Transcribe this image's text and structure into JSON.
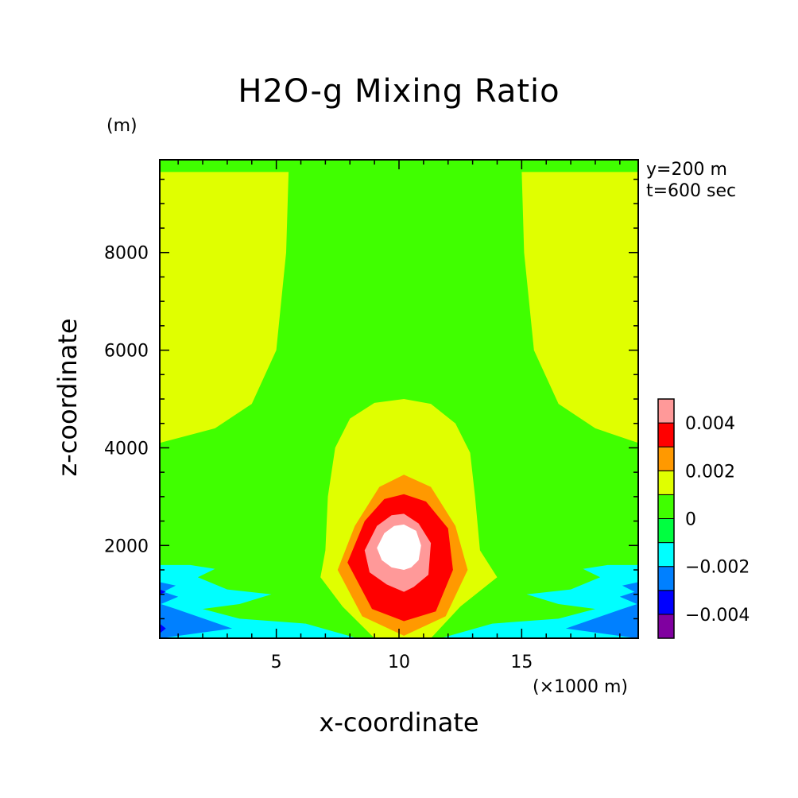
{
  "title": "H2O-g Mixing Ratio",
  "annotations": [
    "y=200 m",
    "t=600 sec"
  ],
  "chart_data": {
    "type": "heatmap",
    "title": "H2O-g Mixing Ratio",
    "xlabel": "x-coordinate",
    "ylabel": "z-coordinate",
    "x_unit_label": "(×1000 m)",
    "y_unit_label": "(m)",
    "xlim": [
      0.25,
      19.75
    ],
    "ylim": [
      100,
      9900
    ],
    "x_ticks": [
      5,
      10,
      15
    ],
    "y_ticks": [
      2000,
      4000,
      6000,
      8000
    ],
    "x_tick_labels": [
      "5",
      "10",
      "15"
    ],
    "y_tick_labels": [
      "2000",
      "4000",
      "6000",
      "8000"
    ],
    "colorbar": {
      "levels": [
        -0.005,
        -0.004,
        -0.003,
        -0.002,
        -0.001,
        0,
        0.001,
        0.002,
        0.003,
        0.004,
        0.005
      ],
      "colors": [
        "#8000a0",
        "#0000ff",
        "#0080ff",
        "#00ffff",
        "#00ff40",
        "#40ff00",
        "#e0ff00",
        "#ff9900",
        "#ff0000",
        "#ff9999"
      ],
      "tick_values": [
        -0.004,
        -0.002,
        0,
        0.002,
        0.004
      ],
      "tick_labels": [
        "−0.004",
        "−0.002",
        "0",
        "0.002",
        "0.004"
      ]
    },
    "background_bin": "0 to 0.001",
    "regions": [
      {
        "name": "upper-left-positive",
        "bin": "0.001 to 0.002",
        "points": [
          [
            0.25,
            9650
          ],
          [
            5.5,
            9650
          ],
          [
            5.4,
            8000
          ],
          [
            5.0,
            6000
          ],
          [
            4.0,
            4900
          ],
          [
            2.5,
            4400
          ],
          [
            1.0,
            4200
          ],
          [
            0.25,
            4100
          ]
        ]
      },
      {
        "name": "upper-right-positive",
        "bin": "0.001 to 0.002",
        "points": [
          [
            19.75,
            9650
          ],
          [
            15.0,
            9650
          ],
          [
            15.1,
            8000
          ],
          [
            15.5,
            6000
          ],
          [
            16.5,
            4900
          ],
          [
            18.0,
            4400
          ],
          [
            19.75,
            4100
          ]
        ]
      },
      {
        "name": "central-plume",
        "bin": "0.001 to 0.002",
        "points": [
          [
            6.8,
            1350
          ],
          [
            7.0,
            1900
          ],
          [
            7.1,
            3000
          ],
          [
            7.4,
            4000
          ],
          [
            8.0,
            4600
          ],
          [
            9.0,
            4920
          ],
          [
            10.2,
            5000
          ],
          [
            11.3,
            4900
          ],
          [
            12.3,
            4500
          ],
          [
            12.9,
            3900
          ],
          [
            13.1,
            3000
          ],
          [
            13.3,
            1900
          ],
          [
            14.0,
            1350
          ],
          [
            12.5,
            750
          ],
          [
            11.3,
            100
          ],
          [
            9.0,
            100
          ],
          [
            7.7,
            750
          ]
        ]
      },
      {
        "name": "plume-ring-1",
        "bin": "0.002 to 0.003",
        "points": [
          [
            7.5,
            1500
          ],
          [
            8.2,
            2400
          ],
          [
            9.2,
            3200
          ],
          [
            10.2,
            3450
          ],
          [
            11.3,
            3200
          ],
          [
            12.3,
            2400
          ],
          [
            12.8,
            1500
          ],
          [
            11.9,
            550
          ],
          [
            10.2,
            150
          ],
          [
            8.5,
            550
          ]
        ]
      },
      {
        "name": "plume-ring-2",
        "bin": "0.003 to 0.004",
        "points": [
          [
            7.9,
            1650
          ],
          [
            8.6,
            2500
          ],
          [
            9.4,
            2950
          ],
          [
            10.2,
            3050
          ],
          [
            11.1,
            2900
          ],
          [
            12.0,
            2350
          ],
          [
            12.2,
            1500
          ],
          [
            11.5,
            650
          ],
          [
            10.2,
            450
          ],
          [
            8.9,
            700
          ]
        ]
      },
      {
        "name": "plume-ring-3",
        "bin": "0.004 to 0.005",
        "points": [
          [
            8.3,
            1800
          ],
          [
            8.9,
            2450
          ],
          [
            9.6,
            2780
          ],
          [
            10.2,
            2820
          ],
          [
            10.9,
            2650
          ],
          [
            11.6,
            2200
          ],
          [
            11.7,
            1500
          ],
          [
            11.2,
            1000
          ],
          [
            10.2,
            900
          ],
          [
            9.2,
            1100
          ]
        ]
      },
      {
        "name": "plume-ring-4",
        "bin": "0.005 to 0.006",
        "points": [
          [
            8.6,
            1900
          ],
          [
            9.1,
            2400
          ],
          [
            9.7,
            2620
          ],
          [
            10.2,
            2650
          ],
          [
            10.8,
            2450
          ],
          [
            11.3,
            2050
          ],
          [
            11.2,
            1400
          ],
          [
            10.6,
            1150
          ],
          [
            10.2,
            1050
          ],
          [
            9.5,
            1200
          ],
          [
            8.8,
            1450
          ]
        ]
      },
      {
        "name": "plume-core",
        "bin": "above 0.006",
        "points": [
          [
            9.1,
            1950
          ],
          [
            9.4,
            2250
          ],
          [
            9.8,
            2400
          ],
          [
            10.2,
            2430
          ],
          [
            10.7,
            2300
          ],
          [
            10.9,
            2000
          ],
          [
            10.8,
            1700
          ],
          [
            10.5,
            1550
          ],
          [
            10.2,
            1500
          ],
          [
            9.7,
            1550
          ],
          [
            9.3,
            1700
          ]
        ]
      },
      {
        "name": "lower-left-negative",
        "bin": "-0.002 to -0.001",
        "points": [
          [
            0.25,
            1600
          ],
          [
            1.5,
            1600
          ],
          [
            2.5,
            1520
          ],
          [
            1.8,
            1350
          ],
          [
            3.0,
            1100
          ],
          [
            4.8,
            1000
          ],
          [
            3.5,
            800
          ],
          [
            2.0,
            700
          ],
          [
            3.5,
            500
          ],
          [
            6.2,
            400
          ],
          [
            8.3,
            100
          ],
          [
            0.25,
            100
          ]
        ]
      },
      {
        "name": "lower-right-negative",
        "bin": "-0.002 to -0.001",
        "points": [
          [
            19.75,
            1600
          ],
          [
            18.5,
            1600
          ],
          [
            17.5,
            1520
          ],
          [
            18.2,
            1350
          ],
          [
            17.0,
            1100
          ],
          [
            15.2,
            1000
          ],
          [
            16.5,
            800
          ],
          [
            18.0,
            700
          ],
          [
            16.5,
            500
          ],
          [
            13.8,
            400
          ],
          [
            11.7,
            100
          ],
          [
            19.75,
            100
          ]
        ]
      },
      {
        "name": "lower-left-negative-2",
        "bin": "-0.003 to -0.002",
        "points": [
          [
            0.25,
            1250
          ],
          [
            0.9,
            1180
          ],
          [
            0.4,
            1050
          ],
          [
            1.0,
            950
          ],
          [
            0.3,
            800
          ],
          [
            0.9,
            700
          ],
          [
            3.2,
            300
          ],
          [
            0.3,
            100
          ],
          [
            0.25,
            100
          ]
        ]
      },
      {
        "name": "lower-right-negative-2",
        "bin": "-0.003 to -0.002",
        "points": [
          [
            19.75,
            1250
          ],
          [
            19.1,
            1180
          ],
          [
            19.6,
            1050
          ],
          [
            19.0,
            950
          ],
          [
            19.7,
            800
          ],
          [
            19.1,
            700
          ],
          [
            16.8,
            300
          ],
          [
            19.7,
            100
          ],
          [
            19.75,
            100
          ]
        ]
      },
      {
        "name": "lower-left-negative-3",
        "bin": "-0.004 to -0.003",
        "points": [
          [
            0.25,
            1100
          ],
          [
            0.5,
            1050
          ],
          [
            0.25,
            1000
          ]
        ]
      },
      {
        "name": "lower-left-negative-4",
        "bin": "-0.004 to -0.003",
        "points": [
          [
            0.25,
            400
          ],
          [
            0.5,
            300
          ],
          [
            0.25,
            200
          ]
        ]
      }
    ]
  }
}
